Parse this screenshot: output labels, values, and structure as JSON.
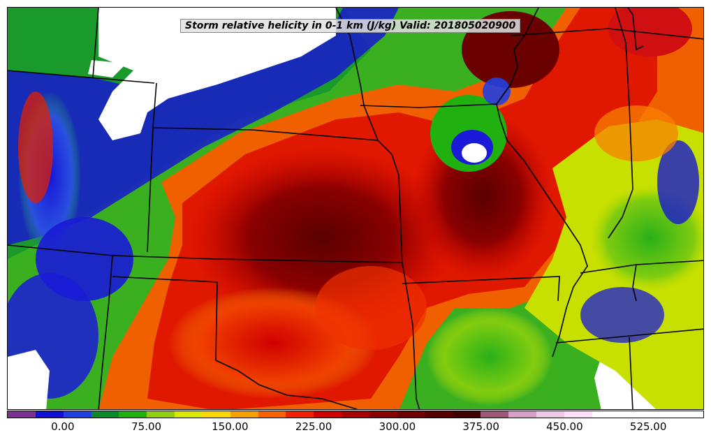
{
  "title": "Storm relative helicity in 0-1 km (J/kg) Valid: 201805020900",
  "legend": {
    "colors": [
      "#7b3294",
      "#1010d8",
      "#2040e0",
      "#0a8a2a",
      "#20b010",
      "#90d010",
      "#d8e800",
      "#f8d800",
      "#f8a000",
      "#f86000",
      "#f02000",
      "#d00000",
      "#a80000",
      "#880000",
      "#700000",
      "#580000",
      "#400000",
      "#a05878",
      "#d8a0c8",
      "#f0c8e8",
      "#fde0f8",
      "#ffffff",
      "#ffffff",
      "#ffffff",
      "#ffffff"
    ],
    "ticks": [
      "0.00",
      "75.00",
      "150.00",
      "225.00",
      "300.00",
      "375.00",
      "450.00",
      "525.00"
    ],
    "tick_values": [
      0,
      75,
      150,
      225,
      300,
      375,
      450,
      525
    ],
    "range": [
      -50,
      575
    ]
  }
}
